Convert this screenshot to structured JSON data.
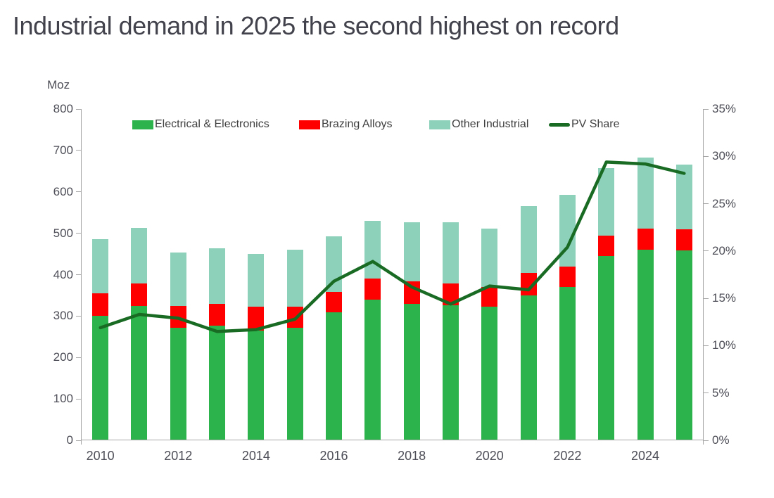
{
  "title": "Industrial demand in 2025 the second highest on record",
  "chart_data": {
    "type": "bar",
    "subtype": "stacked-bars-with-line",
    "categories": [
      2010,
      2011,
      2012,
      2013,
      2014,
      2015,
      2016,
      2017,
      2018,
      2019,
      2020,
      2021,
      2022,
      2023,
      2024,
      2025
    ],
    "series": [
      {
        "name": "Electrical & Electronics",
        "type": "bar",
        "color": "#2db34c",
        "values": [
          300,
          325,
          272,
          277,
          265,
          271,
          309,
          340,
          330,
          326,
          323,
          350,
          371,
          445,
          461,
          458
        ]
      },
      {
        "name": "Brazing Alloys",
        "type": "bar",
        "color": "#fe0000",
        "values": [
          55,
          54,
          53,
          53,
          57,
          52,
          49,
          51,
          54,
          53,
          48,
          54,
          48,
          50,
          51,
          51
        ]
      },
      {
        "name": "Other Industrial",
        "type": "bar",
        "color": "#8ed1bb",
        "values": [
          130,
          134,
          129,
          134,
          129,
          137,
          134,
          139,
          143,
          148,
          141,
          162,
          173,
          163,
          170,
          157
        ]
      },
      {
        "name": "PV Share",
        "type": "line",
        "axis": "right",
        "color": "#196b24",
        "unit": "%",
        "values": [
          11.9,
          13.3,
          12.9,
          11.5,
          11.7,
          12.8,
          16.8,
          18.9,
          16.2,
          14.4,
          16.3,
          15.9,
          20.4,
          29.4,
          29.2,
          28.2
        ]
      }
    ],
    "left_axis": {
      "label": "Moz",
      "min": 0,
      "max": 800,
      "step": 100,
      "tick_labels": [
        "800",
        "700",
        "600",
        "500",
        "400",
        "300",
        "200",
        "100",
        "0"
      ]
    },
    "right_axis": {
      "min": 0,
      "max": 35,
      "step": 5,
      "tick_labels": [
        "35%",
        "30%",
        "25%",
        "20%",
        "15%",
        "10%",
        "5%",
        "0%"
      ]
    },
    "x_tick_labels": [
      "2010",
      "2012",
      "2014",
      "2016",
      "2018",
      "2020",
      "2022",
      "2024"
    ],
    "legend_position": "top",
    "grid": false
  }
}
